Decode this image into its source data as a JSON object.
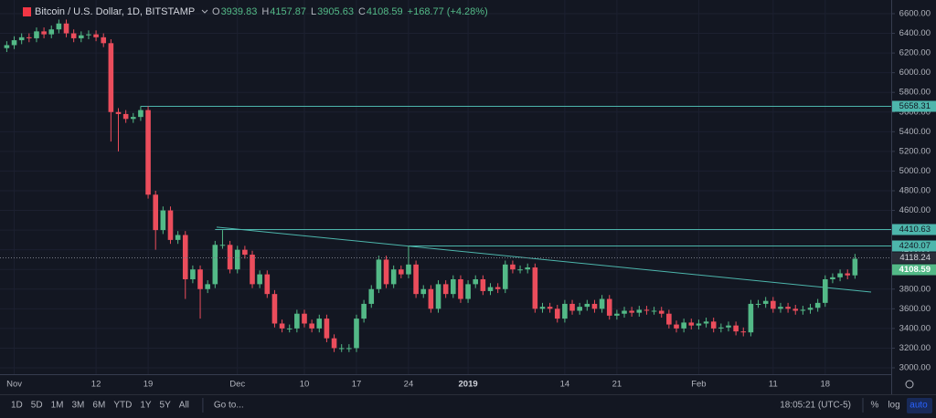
{
  "chart_data": {
    "type": "candlestick",
    "title": "Bitcoin / U.S. Dollar, 1D, BITSTAMP",
    "ohlc_labels": [
      "O",
      "H",
      "L",
      "C"
    ],
    "change_label": "+168.77 (+4.28%)",
    "up_color": "#53b987",
    "down_color": "#eb4d5c",
    "level_color": "#4db6ac",
    "categories": [
      null,
      "Nov",
      null,
      null,
      null,
      null,
      null,
      null,
      null,
      null,
      null,
      null,
      "12",
      null,
      null,
      null,
      null,
      null,
      null,
      "19",
      null,
      null,
      null,
      null,
      null,
      null,
      null,
      null,
      null,
      null,
      null,
      "Dec",
      null,
      null,
      null,
      null,
      null,
      null,
      null,
      null,
      "10",
      null,
      null,
      null,
      null,
      null,
      null,
      "17",
      null,
      null,
      null,
      null,
      null,
      null,
      "24",
      null,
      null,
      null,
      null,
      null,
      null,
      null,
      "2019",
      null,
      null,
      null,
      null,
      null,
      null,
      null,
      null,
      null,
      null,
      null,
      null,
      "14",
      null,
      null,
      null,
      null,
      null,
      null,
      "21",
      null,
      null,
      null,
      null,
      null,
      null,
      null,
      null,
      null,
      null,
      "Feb",
      null,
      null,
      null,
      null,
      null,
      null,
      null,
      null,
      null,
      "11",
      null,
      null,
      null,
      null,
      null,
      null,
      "18",
      null,
      null,
      null,
      null
    ],
    "open": [
      6250,
      6280,
      6330,
      6360,
      6350,
      6420,
      6390,
      6440,
      6500,
      6400,
      6350,
      6380,
      6390,
      6360,
      6300,
      5600,
      5580,
      5530,
      5550,
      5620,
      4760,
      4400,
      4600,
      4300,
      4350,
      3900,
      4000,
      3800,
      3850,
      4250,
      4250,
      4000,
      4200,
      4150,
      3850,
      3950,
      3750,
      3450,
      3400,
      3400,
      3550,
      3450,
      3400,
      3500,
      3300,
      3200,
      3200,
      3200,
      3500,
      3650,
      3800,
      4100,
      3850,
      4000,
      3950,
      4050,
      3750,
      3800,
      3600,
      3850,
      3750,
      3900,
      3700,
      3850,
      3900,
      3780,
      3820,
      3800,
      4050,
      4000,
      4000,
      4020,
      3600,
      3620,
      3600,
      3500,
      3650,
      3580,
      3620,
      3650,
      3600,
      3700,
      3530,
      3550,
      3580,
      3560,
      3590,
      3580,
      3580,
      3550,
      3440,
      3400,
      3460,
      3430,
      3450,
      3470,
      3400,
      3410,
      3430,
      3370,
      3360,
      3650,
      3650,
      3680,
      3600,
      3620,
      3600,
      3580,
      3590,
      3610,
      3660,
      3900,
      3920,
      3960,
      3939.83
    ],
    "high": [
      6320,
      6370,
      6400,
      6400,
      6460,
      6460,
      6480,
      6540,
      6540,
      6440,
      6420,
      6430,
      6430,
      6400,
      6340,
      5640,
      5620,
      5590,
      5660,
      5660,
      4800,
      4640,
      4640,
      4390,
      4390,
      4040,
      4040,
      3890,
      4290,
      4400,
      4290,
      4240,
      4240,
      4190,
      3990,
      3990,
      3790,
      3490,
      3440,
      3590,
      3590,
      3490,
      3540,
      3540,
      3340,
      3240,
      3240,
      3540,
      3690,
      3840,
      4140,
      4140,
      4040,
      4040,
      4240,
      4090,
      3840,
      3840,
      3890,
      3890,
      3940,
      3940,
      3890,
      3940,
      3940,
      3860,
      3860,
      4090,
      4090,
      4040,
      4060,
      4060,
      3660,
      3660,
      3640,
      3690,
      3690,
      3660,
      3690,
      3690,
      3740,
      3740,
      3590,
      3620,
      3620,
      3630,
      3630,
      3620,
      3620,
      3590,
      3480,
      3500,
      3500,
      3490,
      3510,
      3510,
      3450,
      3470,
      3470,
      3410,
      3690,
      3690,
      3720,
      3720,
      3660,
      3660,
      3640,
      3630,
      3650,
      3700,
      3940,
      3960,
      4000,
      4000,
      4157.87
    ],
    "low": [
      6210,
      6240,
      6290,
      6310,
      6310,
      6350,
      6350,
      6400,
      6360,
      6310,
      6310,
      6340,
      6320,
      6260,
      5300,
      5200,
      5490,
      5490,
      5510,
      4720,
      4200,
      4360,
      4260,
      4260,
      3700,
      3860,
      3500,
      3760,
      3810,
      4210,
      3960,
      3960,
      4110,
      3810,
      3810,
      3710,
      3410,
      3360,
      3360,
      3360,
      3410,
      3360,
      3360,
      3260,
      3160,
      3160,
      3160,
      3160,
      3460,
      3610,
      3760,
      3810,
      3810,
      3910,
      3910,
      3710,
      3710,
      3560,
      3560,
      3710,
      3710,
      3660,
      3660,
      3810,
      3740,
      3740,
      3760,
      3760,
      3960,
      3960,
      3960,
      3560,
      3560,
      3560,
      3460,
      3460,
      3540,
      3540,
      3580,
      3560,
      3560,
      3490,
      3490,
      3510,
      3520,
      3520,
      3540,
      3540,
      3510,
      3400,
      3360,
      3360,
      3390,
      3390,
      3410,
      3360,
      3360,
      3370,
      3330,
      3320,
      3320,
      3610,
      3610,
      3560,
      3560,
      3560,
      3540,
      3540,
      3550,
      3570,
      3620,
      3860,
      3880,
      3900,
      3905.63
    ],
    "close": [
      6280,
      6330,
      6360,
      6350,
      6420,
      6390,
      6440,
      6500,
      6400,
      6350,
      6380,
      6390,
      6360,
      6300,
      5600,
      5580,
      5530,
      5550,
      5620,
      4760,
      4400,
      4600,
      4300,
      4350,
      3900,
      4000,
      3800,
      3850,
      4250,
      4250,
      4000,
      4200,
      4150,
      3850,
      3950,
      3750,
      3450,
      3400,
      3400,
      3550,
      3450,
      3400,
      3500,
      3300,
      3200,
      3200,
      3200,
      3500,
      3650,
      3800,
      4100,
      3850,
      4000,
      3950,
      4050,
      3750,
      3800,
      3600,
      3850,
      3750,
      3900,
      3700,
      3850,
      3900,
      3780,
      3820,
      3800,
      4050,
      4000,
      4000,
      4020,
      3600,
      3620,
      3600,
      3500,
      3650,
      3580,
      3620,
      3650,
      3600,
      3700,
      3530,
      3550,
      3580,
      3560,
      3590,
      3580,
      3580,
      3550,
      3440,
      3400,
      3460,
      3430,
      3450,
      3470,
      3400,
      3410,
      3430,
      3370,
      3360,
      3650,
      3650,
      3680,
      3600,
      3620,
      3600,
      3580,
      3590,
      3610,
      3660,
      3900,
      3920,
      3960,
      3939.83,
      4108.59
    ],
    "levels": [
      5658.31,
      4410.63,
      4240.07
    ],
    "price_line": 4118.24,
    "trendline": [
      4430,
      3770
    ],
    "ylim": [
      2935,
      6739
    ],
    "yticks": [
      {
        "value": 3000,
        "label": "3000.00"
      },
      {
        "value": 3200,
        "label": "3200.00"
      },
      {
        "value": 3400,
        "label": "3400.00"
      },
      {
        "value": 3600,
        "label": "3600.00"
      },
      {
        "value": 3800,
        "label": "3800.00"
      },
      {
        "value": 4000,
        "label": "4000.00"
      },
      {
        "value": 4200,
        "label": "4200.00"
      },
      {
        "value": 4400,
        "label": "4400.00"
      },
      {
        "value": 4600,
        "label": "4600.00"
      },
      {
        "value": 4800,
        "label": "4800.00"
      },
      {
        "value": 5000,
        "label": "5000.00"
      },
      {
        "value": 5200,
        "label": "5200.00"
      },
      {
        "value": 5400,
        "label": "5400.00"
      },
      {
        "value": 5600,
        "label": "5600.00"
      },
      {
        "value": 5800,
        "label": "5800.00"
      },
      {
        "value": 6000,
        "label": "6000.00"
      },
      {
        "value": 6200,
        "label": "6200.00"
      },
      {
        "value": 6400,
        "label": "6400.00"
      },
      {
        "value": 6600,
        "label": "6600.00"
      }
    ],
    "grid": true
  },
  "toolbar": {
    "ranges": [
      "1D",
      "5D",
      "1M",
      "3M",
      "6M",
      "YTD",
      "1Y",
      "5Y",
      "All"
    ],
    "goto": "Go to...",
    "clock": "18:05:21 (UTC-5)",
    "options": [
      "%",
      "log",
      "auto"
    ]
  }
}
